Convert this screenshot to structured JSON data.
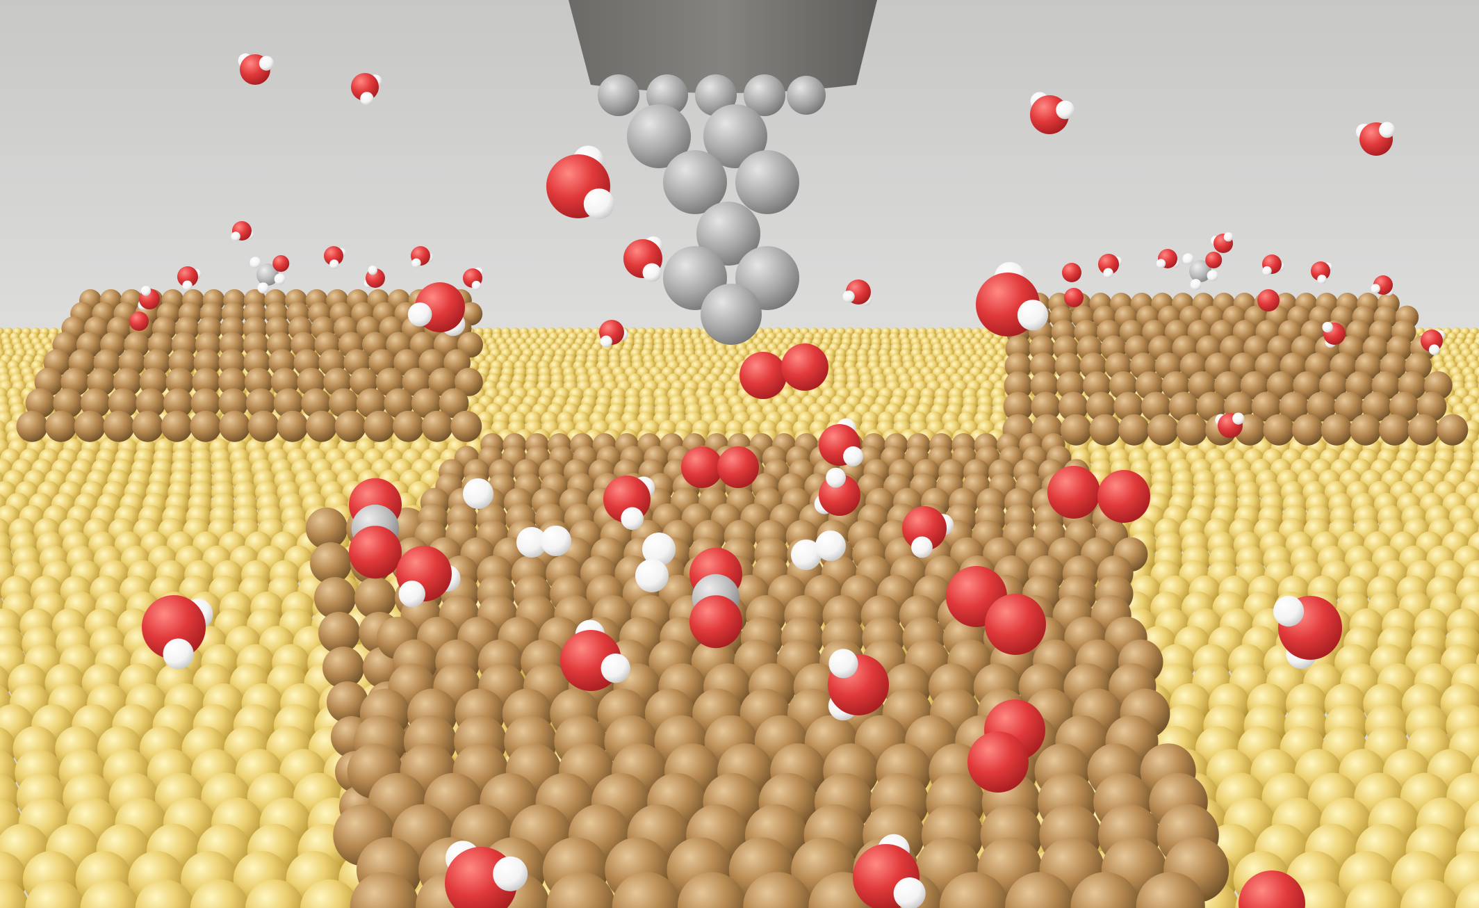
{
  "scene": {
    "kind": "3D molecular render",
    "colors": {
      "background": "#d2d2d1",
      "gold_surface": "#e8cf6e",
      "copper_cluster": "#b98c55",
      "oxygen": "#e0383a",
      "hydrogen": "#f5f5f5",
      "carbon": "#b5b5b5",
      "tip_atoms": "#a9a9a9",
      "tip_holder": "#7a7874"
    },
    "objects": [
      "tip-holder",
      "tip-atoms",
      "gold-substrate",
      "copper-cluster-left",
      "copper-cluster-right",
      "copper-cluster-center",
      "water-molecules",
      "oxygen-molecules",
      "carbon-monoxide-molecules",
      "methanol-molecules"
    ]
  }
}
